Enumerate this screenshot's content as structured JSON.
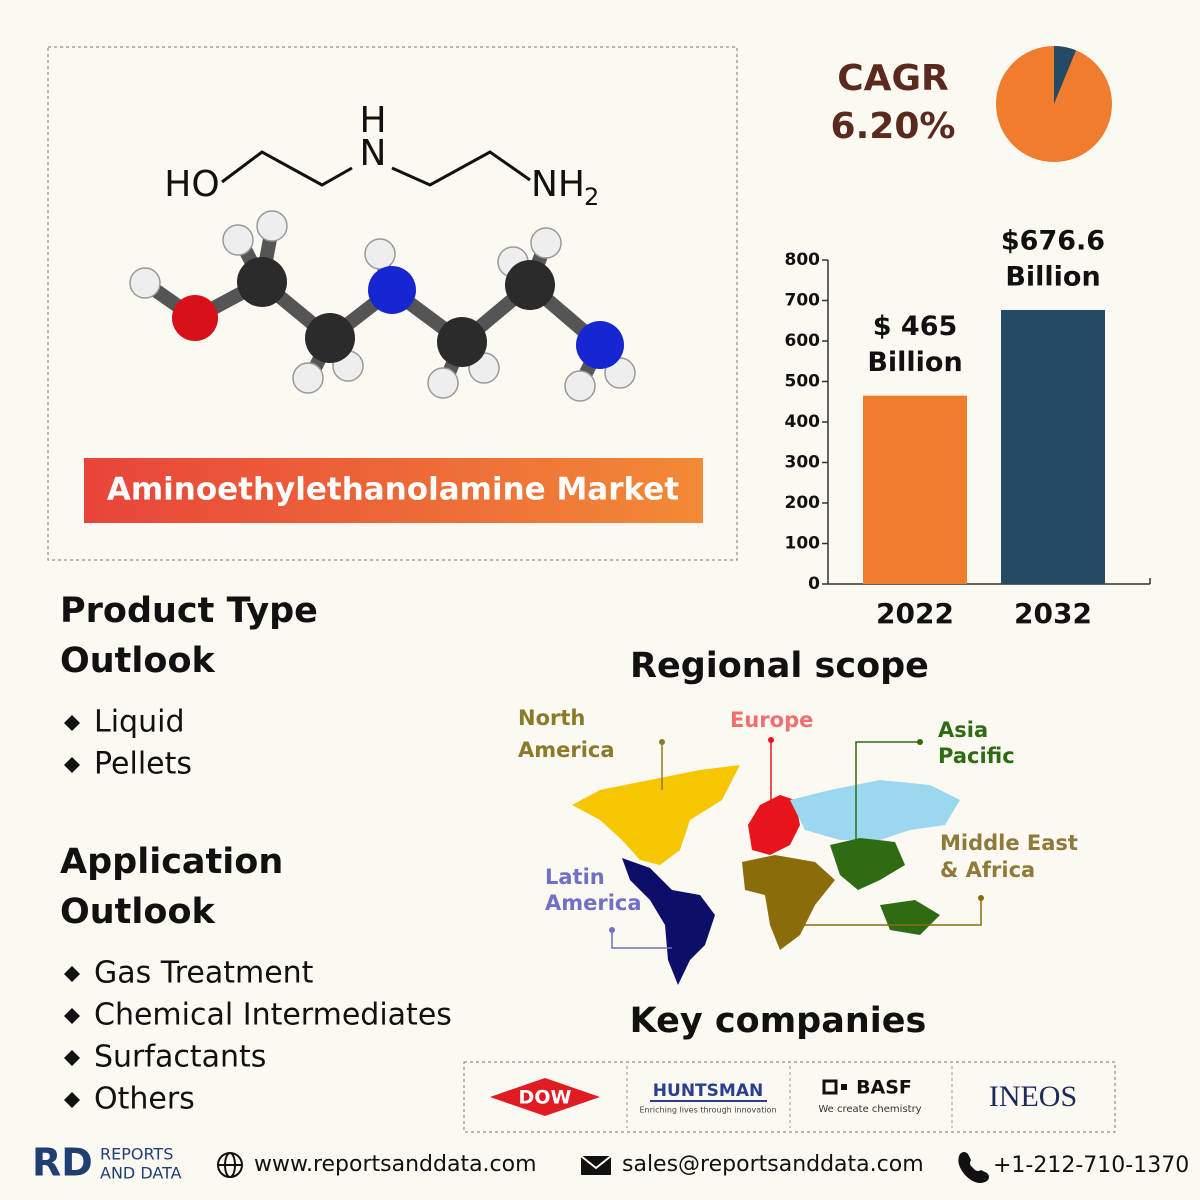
{
  "title": "Aminoethylethanolamine Market",
  "formula": {
    "ho": "HO",
    "h": "H",
    "n": "N",
    "nh": "NH",
    "sub": "2"
  },
  "chart_data": [
    {
      "type": "pie",
      "title": "CAGR",
      "values": [
        6.2
      ],
      "value_labels": [
        "6.20%"
      ],
      "colors": [
        "#264a63"
      ],
      "background": "#f07c2e"
    },
    {
      "type": "bar",
      "categories": [
        "2022",
        "2032"
      ],
      "values": [
        465,
        676.6
      ],
      "value_labels": [
        [
          "$ 465",
          "Billion"
        ],
        [
          "$676.6",
          "Billion"
        ]
      ],
      "colors": [
        "#f07c2e",
        "#264a63"
      ],
      "ylim": [
        0,
        800
      ],
      "yticks": [
        0,
        100,
        200,
        300,
        400,
        500,
        600,
        700,
        800
      ]
    }
  ],
  "product_type": {
    "title": [
      "Product Type",
      "Outlook"
    ],
    "items": [
      "Liquid",
      "Pellets"
    ]
  },
  "application": {
    "title": [
      "Application",
      "Outlook"
    ],
    "items": [
      "Gas Treatment",
      "Chemical Intermediates",
      "Surfactants",
      "Others"
    ]
  },
  "regional": {
    "title": "Regional scope",
    "regions": [
      [
        "North",
        "America"
      ],
      [
        "Europe"
      ],
      [
        "Asia",
        "Pacific"
      ],
      [
        "Middle East",
        "& Africa"
      ],
      [
        "Latin",
        "America"
      ]
    ]
  },
  "companies": {
    "title": "Key companies",
    "logos": [
      [
        "DOW"
      ],
      [
        "HUNTSMAN",
        "Enriching lives through innovation"
      ],
      [
        "BASF",
        "We create chemistry"
      ],
      [
        "INEOS"
      ]
    ]
  },
  "footer": {
    "brand": "RD",
    "brand_lines": [
      "REPORTS",
      "AND DATA"
    ],
    "website": "www.reportsanddata.com",
    "email": "sales@reportsanddata.com",
    "phone": "+1-212-710-1370"
  }
}
